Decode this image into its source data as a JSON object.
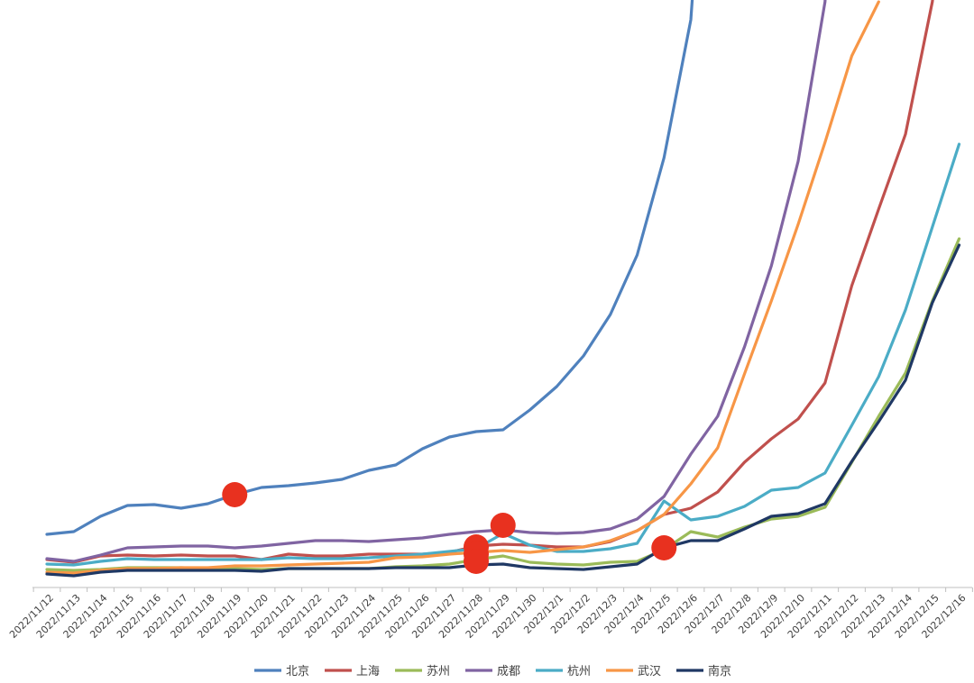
{
  "chart_data": {
    "type": "line",
    "title": "",
    "xlabel": "",
    "ylabel": "",
    "grid": false,
    "legend_position": "bottom",
    "categories": [
      "2022/11/12",
      "2022/11/13",
      "2022/11/14",
      "2022/11/15",
      "2022/11/16",
      "2022/11/17",
      "2022/11/18",
      "2022/11/19",
      "2022/11/20",
      "2022/11/21",
      "2022/11/22",
      "2022/11/23",
      "2022/11/24",
      "2022/11/25",
      "2022/11/26",
      "2022/11/27",
      "2022/11/28",
      "2022/11/29",
      "2022/11/30",
      "2022/12/1",
      "2022/12/2",
      "2022/12/3",
      "2022/12/4",
      "2022/12/5",
      "2022/12/6",
      "2022/12/7",
      "2022/12/8",
      "2022/12/9",
      "2022/12/10",
      "2022/12/11",
      "2022/12/12",
      "2022/12/13",
      "2022/12/14",
      "2022/12/15",
      "2022/12/16"
    ],
    "ylim": [
      0,
      650
    ],
    "series": [
      {
        "name": "北京",
        "color": "#4f81bd",
        "values": [
          59,
          62,
          79,
          91,
          92,
          88,
          93,
          103,
          111,
          113,
          116,
          120,
          130,
          136,
          154,
          167,
          173,
          175,
          197,
          223,
          257,
          303,
          369,
          477,
          630,
          1050,
          null,
          null,
          null,
          null,
          null,
          null,
          null,
          null,
          null
        ]
      },
      {
        "name": "上海",
        "color": "#c0504d",
        "values": [
          31,
          28,
          35,
          36,
          35,
          36,
          35,
          35,
          31,
          37,
          35,
          35,
          37,
          37,
          37,
          39,
          46,
          48,
          47,
          45,
          45,
          51,
          63,
          81,
          88,
          106,
          139,
          165,
          187,
          227,
          335,
          420,
          503,
          650,
          900
        ]
      },
      {
        "name": "苏州",
        "color": "#9bbb59",
        "values": [
          20,
          19,
          20,
          22,
          22,
          22,
          21,
          21,
          20,
          21,
          21,
          21,
          21,
          23,
          24,
          26,
          31,
          35,
          28,
          26,
          25,
          28,
          29,
          42,
          62,
          56,
          67,
          76,
          79,
          89,
          139,
          190,
          238,
          318,
          387
        ]
      },
      {
        "name": "成都",
        "color": "#8064a2",
        "values": [
          32,
          29,
          36,
          44,
          45,
          46,
          46,
          44,
          46,
          49,
          52,
          52,
          51,
          53,
          55,
          59,
          62,
          64,
          61,
          60,
          61,
          65,
          76,
          101,
          148,
          190,
          267,
          357,
          473,
          650,
          1200,
          null,
          null,
          null,
          null
        ]
      },
      {
        "name": "杭州",
        "color": "#4bacc6",
        "values": [
          26,
          25,
          29,
          32,
          31,
          31,
          31,
          31,
          31,
          33,
          32,
          32,
          33,
          35,
          37,
          40,
          43,
          60,
          47,
          40,
          40,
          43,
          49,
          96,
          75,
          79,
          90,
          108,
          111,
          127,
          180,
          234,
          308,
          400,
          492
        ]
      },
      {
        "name": "武汉",
        "color": "#f79646",
        "values": [
          17,
          16,
          19,
          21,
          21,
          22,
          22,
          24,
          24,
          25,
          26,
          27,
          28,
          33,
          34,
          37,
          39,
          41,
          39,
          42,
          45,
          52,
          63,
          81,
          115,
          155,
          237,
          318,
          403,
          494,
          590,
          650,
          null,
          null,
          null
        ]
      },
      {
        "name": "南京",
        "color": "#1f3864",
        "values": [
          15,
          13,
          17,
          19,
          19,
          19,
          19,
          19,
          18,
          21,
          21,
          21,
          21,
          22,
          22,
          22,
          25,
          26,
          22,
          21,
          20,
          23,
          26,
          44,
          52,
          52,
          65,
          79,
          82,
          93,
          140,
          184,
          230,
          316,
          380
        ]
      }
    ],
    "annotations": [
      {
        "type": "marker",
        "x": "2022/11/19",
        "y": 103,
        "color": "#e8311f"
      },
      {
        "type": "marker",
        "x": "2022/11/28",
        "y": 45,
        "color": "#e8311f"
      },
      {
        "type": "marker",
        "x": "2022/11/28",
        "y": 37,
        "color": "#e8311f"
      },
      {
        "type": "marker",
        "x": "2022/11/28",
        "y": 29,
        "color": "#e8311f"
      },
      {
        "type": "marker",
        "x": "2022/11/29",
        "y": 69,
        "color": "#e8311f"
      },
      {
        "type": "marker",
        "x": "2022/12/5",
        "y": 44,
        "color": "#e8311f"
      }
    ]
  }
}
